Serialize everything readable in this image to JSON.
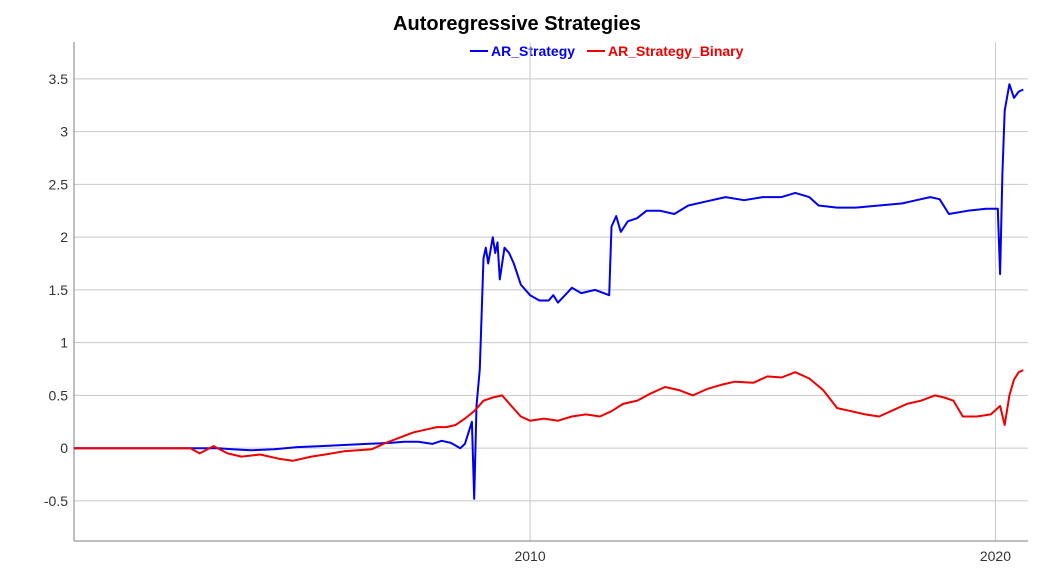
{
  "chart_data": {
    "type": "line",
    "title": "Autoregressive Strategies",
    "xlabel": "",
    "ylabel": "",
    "xlim": [
      2000.2,
      2020.7
    ],
    "ylim": [
      -0.88,
      3.85
    ],
    "grid": true,
    "legend": "top-center",
    "x_ticks": [
      {
        "value": 2010,
        "label": "2010"
      },
      {
        "value": 2020,
        "label": "2020"
      }
    ],
    "y_ticks": [
      {
        "value": -0.5,
        "label": "-0.5"
      },
      {
        "value": 0,
        "label": "0"
      },
      {
        "value": 0.5,
        "label": "0.5"
      },
      {
        "value": 1,
        "label": "1"
      },
      {
        "value": 1.5,
        "label": "1.5"
      },
      {
        "value": 2,
        "label": "2"
      },
      {
        "value": 2.5,
        "label": "2.5"
      },
      {
        "value": 3,
        "label": "3"
      },
      {
        "value": 3.5,
        "label": "3.5"
      }
    ],
    "series": [
      {
        "name": "AR_Strategy",
        "color": "#0000ee",
        "points": [
          [
            2000.2,
            0.0
          ],
          [
            2002.7,
            0.0
          ],
          [
            2003.0,
            0.0
          ],
          [
            2003.3,
            0.0
          ],
          [
            2003.6,
            -0.01
          ],
          [
            2004.0,
            -0.02
          ],
          [
            2004.5,
            -0.01
          ],
          [
            2005.0,
            0.01
          ],
          [
            2005.5,
            0.02
          ],
          [
            2006.0,
            0.03
          ],
          [
            2006.5,
            0.04
          ],
          [
            2007.0,
            0.05
          ],
          [
            2007.3,
            0.06
          ],
          [
            2007.6,
            0.06
          ],
          [
            2007.9,
            0.04
          ],
          [
            2008.1,
            0.07
          ],
          [
            2008.3,
            0.05
          ],
          [
            2008.5,
            0.0
          ],
          [
            2008.6,
            0.04
          ],
          [
            2008.75,
            0.25
          ],
          [
            2008.8,
            -0.48
          ],
          [
            2008.85,
            0.4
          ],
          [
            2008.92,
            0.75
          ],
          [
            2009.0,
            1.8
          ],
          [
            2009.05,
            1.9
          ],
          [
            2009.1,
            1.75
          ],
          [
            2009.2,
            2.0
          ],
          [
            2009.25,
            1.85
          ],
          [
            2009.3,
            1.95
          ],
          [
            2009.35,
            1.6
          ],
          [
            2009.45,
            1.9
          ],
          [
            2009.55,
            1.85
          ],
          [
            2009.65,
            1.75
          ],
          [
            2009.8,
            1.55
          ],
          [
            2010.0,
            1.45
          ],
          [
            2010.2,
            1.4
          ],
          [
            2010.4,
            1.4
          ],
          [
            2010.5,
            1.45
          ],
          [
            2010.6,
            1.38
          ],
          [
            2010.75,
            1.45
          ],
          [
            2010.9,
            1.52
          ],
          [
            2011.1,
            1.47
          ],
          [
            2011.4,
            1.5
          ],
          [
            2011.7,
            1.45
          ],
          [
            2011.75,
            2.1
          ],
          [
            2011.85,
            2.2
          ],
          [
            2011.95,
            2.05
          ],
          [
            2012.1,
            2.15
          ],
          [
            2012.3,
            2.18
          ],
          [
            2012.5,
            2.25
          ],
          [
            2012.8,
            2.25
          ],
          [
            2013.1,
            2.22
          ],
          [
            2013.4,
            2.3
          ],
          [
            2013.8,
            2.34
          ],
          [
            2014.2,
            2.38
          ],
          [
            2014.6,
            2.35
          ],
          [
            2015.0,
            2.38
          ],
          [
            2015.4,
            2.38
          ],
          [
            2015.7,
            2.42
          ],
          [
            2016.0,
            2.38
          ],
          [
            2016.2,
            2.3
          ],
          [
            2016.6,
            2.28
          ],
          [
            2017.0,
            2.28
          ],
          [
            2017.5,
            2.3
          ],
          [
            2018.0,
            2.32
          ],
          [
            2018.3,
            2.35
          ],
          [
            2018.6,
            2.38
          ],
          [
            2018.8,
            2.36
          ],
          [
            2019.0,
            2.22
          ],
          [
            2019.4,
            2.25
          ],
          [
            2019.8,
            2.27
          ],
          [
            2020.05,
            2.27
          ],
          [
            2020.1,
            1.65
          ],
          [
            2020.15,
            2.6
          ],
          [
            2020.2,
            3.2
          ],
          [
            2020.3,
            3.45
          ],
          [
            2020.4,
            3.32
          ],
          [
            2020.5,
            3.38
          ],
          [
            2020.6,
            3.4
          ]
        ]
      },
      {
        "name": "AR_Strategy_Binary",
        "color": "#ee0000",
        "points": [
          [
            2000.2,
            0.0
          ],
          [
            2002.7,
            0.0
          ],
          [
            2002.9,
            -0.05
          ],
          [
            2003.2,
            0.02
          ],
          [
            2003.5,
            -0.05
          ],
          [
            2003.8,
            -0.08
          ],
          [
            2004.2,
            -0.06
          ],
          [
            2004.6,
            -0.1
          ],
          [
            2004.9,
            -0.12
          ],
          [
            2005.3,
            -0.08
          ],
          [
            2005.6,
            -0.06
          ],
          [
            2006.0,
            -0.03
          ],
          [
            2006.3,
            -0.02
          ],
          [
            2006.6,
            -0.01
          ],
          [
            2006.9,
            0.05
          ],
          [
            2007.2,
            0.1
          ],
          [
            2007.5,
            0.15
          ],
          [
            2007.8,
            0.18
          ],
          [
            2008.0,
            0.2
          ],
          [
            2008.2,
            0.2
          ],
          [
            2008.4,
            0.22
          ],
          [
            2008.6,
            0.28
          ],
          [
            2008.8,
            0.35
          ],
          [
            2009.0,
            0.45
          ],
          [
            2009.2,
            0.48
          ],
          [
            2009.4,
            0.5
          ],
          [
            2009.6,
            0.4
          ],
          [
            2009.8,
            0.3
          ],
          [
            2010.0,
            0.26
          ],
          [
            2010.3,
            0.28
          ],
          [
            2010.6,
            0.26
          ],
          [
            2010.9,
            0.3
          ],
          [
            2011.2,
            0.32
          ],
          [
            2011.5,
            0.3
          ],
          [
            2011.75,
            0.35
          ],
          [
            2012.0,
            0.42
          ],
          [
            2012.3,
            0.45
          ],
          [
            2012.6,
            0.52
          ],
          [
            2012.9,
            0.58
          ],
          [
            2013.2,
            0.55
          ],
          [
            2013.5,
            0.5
          ],
          [
            2013.8,
            0.56
          ],
          [
            2014.1,
            0.6
          ],
          [
            2014.4,
            0.63
          ],
          [
            2014.8,
            0.62
          ],
          [
            2015.1,
            0.68
          ],
          [
            2015.4,
            0.67
          ],
          [
            2015.7,
            0.72
          ],
          [
            2016.0,
            0.66
          ],
          [
            2016.3,
            0.55
          ],
          [
            2016.6,
            0.38
          ],
          [
            2016.9,
            0.35
          ],
          [
            2017.2,
            0.32
          ],
          [
            2017.5,
            0.3
          ],
          [
            2017.8,
            0.36
          ],
          [
            2018.1,
            0.42
          ],
          [
            2018.4,
            0.45
          ],
          [
            2018.7,
            0.5
          ],
          [
            2018.9,
            0.48
          ],
          [
            2019.1,
            0.45
          ],
          [
            2019.3,
            0.3
          ],
          [
            2019.6,
            0.3
          ],
          [
            2019.9,
            0.32
          ],
          [
            2020.1,
            0.4
          ],
          [
            2020.2,
            0.22
          ],
          [
            2020.3,
            0.5
          ],
          [
            2020.4,
            0.65
          ],
          [
            2020.5,
            0.72
          ],
          [
            2020.6,
            0.74
          ]
        ]
      }
    ]
  }
}
